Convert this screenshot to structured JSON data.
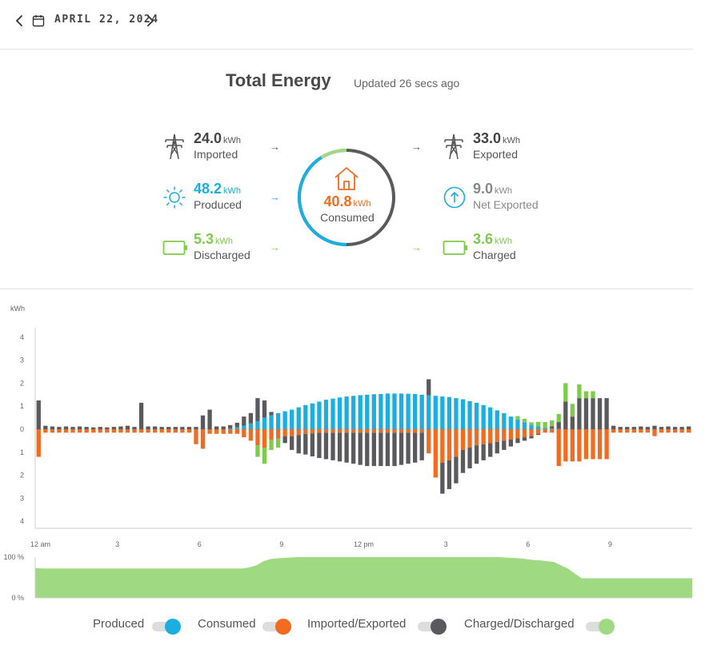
{
  "date_nav": {
    "date": "APRIL 22, 2024"
  },
  "header": {
    "title": "Total Energy",
    "updated": "Updated 26 secs ago"
  },
  "colors": {
    "produced": "#1AAFE0",
    "consumed": "#F26B21",
    "grid": "#5A5A5E",
    "battery": "#7DCB4A",
    "soc_fill": "#9FDA82"
  },
  "stats": {
    "imported": {
      "value": "24.0",
      "unit": "kWh",
      "label": "Imported"
    },
    "produced": {
      "value": "48.2",
      "unit": "kWh",
      "label": "Produced"
    },
    "discharged": {
      "value": "5.3",
      "unit": "kWh",
      "label": "Discharged"
    },
    "consumed": {
      "value": "40.8",
      "unit": "kWh",
      "label": "Consumed"
    },
    "exported": {
      "value": "33.0",
      "unit": "kWh",
      "label": "Exported"
    },
    "net_exported": {
      "value": "9.0",
      "unit": "kWh",
      "label": "Net Exported"
    },
    "charged": {
      "value": "3.6",
      "unit": "kWh",
      "label": "Charged"
    }
  },
  "legend": [
    {
      "label": "Produced",
      "color": "#1AAFE0",
      "enabled": true
    },
    {
      "label": "Consumed",
      "color": "#F26B21",
      "enabled": true
    },
    {
      "label": "Imported/Exported",
      "color": "#5A5A5E",
      "enabled": true
    },
    {
      "label": "Charged/Discharged",
      "color": "#7DCB4A",
      "enabled": true
    }
  ],
  "chart_data": [
    {
      "type": "bar",
      "ylabel": "kWh",
      "ylim": [
        -4,
        4
      ],
      "y_ticks": [
        "4",
        "3",
        "2",
        "1",
        "0",
        "1",
        "2",
        "3",
        "4"
      ],
      "x_ticks": [
        "12 am",
        "3",
        "6",
        "9",
        "12 pm",
        "3",
        "6",
        "9"
      ],
      "interval_hours": 0.25,
      "series": [
        {
          "name": "Produced",
          "values": [
            0,
            0,
            0,
            0,
            0,
            0,
            0,
            0,
            0,
            0,
            0,
            0,
            0,
            0,
            0,
            0,
            0,
            0,
            0,
            0,
            0,
            0,
            0,
            0,
            0,
            0,
            0,
            0,
            0.03,
            0.08,
            0.15,
            0.25,
            0.35,
            0.5,
            0.6,
            0.7,
            0.78,
            0.85,
            0.95,
            1.05,
            1.12,
            1.2,
            1.28,
            1.33,
            1.38,
            1.42,
            1.45,
            1.48,
            1.5,
            1.52,
            1.53,
            1.55,
            1.55,
            1.55,
            1.54,
            1.53,
            1.5,
            1.47,
            1.45,
            1.42,
            1.4,
            1.35,
            1.3,
            1.22,
            1.15,
            1.05,
            0.95,
            0.82,
            0.7,
            0.55,
            0.42,
            0.3,
            0.2,
            0.12,
            0.06,
            0.03,
            0.01,
            0,
            0,
            0,
            0,
            0,
            0,
            0,
            0,
            0,
            0,
            0,
            0,
            0,
            0,
            0,
            0,
            0,
            0,
            0
          ]
        },
        {
          "name": "Consumed",
          "values": [
            -1.2,
            -0.15,
            -0.15,
            -0.15,
            -0.15,
            -0.15,
            -0.15,
            -0.15,
            -0.15,
            -0.15,
            -0.15,
            -0.15,
            -0.15,
            -0.15,
            -0.15,
            -0.15,
            -0.15,
            -0.15,
            -0.15,
            -0.15,
            -0.15,
            -0.15,
            -0.15,
            -0.65,
            -0.85,
            -0.2,
            -0.2,
            -0.2,
            -0.2,
            -0.2,
            -0.35,
            -0.5,
            -0.7,
            -0.8,
            -0.45,
            -0.4,
            -0.3,
            -0.3,
            -0.25,
            -0.2,
            -0.18,
            -0.15,
            -0.15,
            -0.15,
            -0.15,
            -0.15,
            -0.15,
            -0.15,
            -0.15,
            -0.15,
            -0.15,
            -0.15,
            -0.15,
            -0.15,
            -0.15,
            -0.15,
            -0.15,
            -1.05,
            -2.1,
            -1.45,
            -1.35,
            -1.2,
            -0.9,
            -0.8,
            -0.7,
            -0.65,
            -0.6,
            -0.55,
            -0.5,
            -0.45,
            -0.4,
            -0.35,
            -0.3,
            -0.2,
            -0.15,
            -0.15,
            -1.6,
            -1.4,
            -1.4,
            -1.4,
            -1.3,
            -1.3,
            -1.3,
            -1.3,
            -0.15,
            -0.15,
            -0.15,
            -0.15,
            -0.15,
            -0.15,
            -0.3,
            -0.15,
            -0.15,
            -0.15,
            -0.15,
            -0.15
          ]
        },
        {
          "name": "Imported/Exported",
          "values": [
            1.25,
            0.15,
            0.12,
            0.1,
            0.12,
            0.1,
            0.12,
            0.1,
            0.08,
            0.1,
            0.08,
            0.1,
            0.12,
            0.15,
            0.1,
            1.15,
            0.12,
            0.12,
            0.1,
            0.1,
            0.1,
            0.1,
            0.1,
            0.1,
            0.6,
            0.85,
            0.12,
            0.12,
            0.15,
            0.2,
            0.4,
            0.45,
            1.0,
            0.75,
            0.15,
            0,
            -0.3,
            -0.6,
            -0.8,
            -0.9,
            -1.0,
            -1.1,
            -1.15,
            -1.2,
            -1.25,
            -1.3,
            -1.35,
            -1.4,
            -1.45,
            -1.45,
            -1.45,
            -1.45,
            -1.45,
            -1.4,
            -1.35,
            -1.3,
            -1.2,
            0.7,
            0,
            -1.35,
            -1.25,
            -1.15,
            -1.0,
            -0.9,
            -0.8,
            -0.7,
            -0.6,
            -0.5,
            -0.4,
            -0.3,
            -0.2,
            -0.15,
            -0.1,
            -0.05,
            0,
            0.1,
            0.3,
            1.2,
            0.55,
            1.35,
            1.35,
            1.35,
            1.35,
            1.35,
            0.15,
            0.1,
            0.1,
            0.1,
            0.12,
            0.1,
            0.15,
            0.1,
            0.12,
            0.1,
            0.1,
            0.12
          ]
        },
        {
          "name": "Charged/Discharged",
          "values": [
            0,
            0,
            0,
            0,
            0,
            0,
            0,
            0,
            0,
            0,
            0,
            0,
            0,
            0,
            0,
            0,
            0,
            0,
            0,
            0,
            0,
            0,
            0,
            0,
            0,
            0,
            0,
            0,
            0,
            0,
            0,
            0,
            -0.5,
            -0.7,
            -0.45,
            -0.4,
            0,
            0,
            0,
            0,
            0,
            0,
            0,
            0,
            0,
            0,
            0,
            0,
            0,
            0,
            0,
            0,
            0,
            0,
            0,
            0,
            0,
            0,
            0,
            0,
            0,
            0,
            0,
            0,
            0,
            0,
            0,
            0,
            0,
            0,
            0.15,
            0.15,
            0.1,
            0.2,
            0.25,
            0.25,
            0.35,
            0.8,
            0.55,
            0.6,
            0.3,
            0.3,
            0,
            0,
            0,
            0,
            0,
            0,
            0,
            0,
            0,
            0,
            0,
            0,
            0,
            0
          ]
        }
      ]
    },
    {
      "type": "area",
      "name": "Battery state of charge",
      "y_ticks": [
        "100 %",
        "0 %"
      ],
      "ylim": [
        0,
        100
      ],
      "values": [
        73,
        72,
        72,
        72,
        72,
        72,
        72,
        72,
        72,
        72,
        72,
        72,
        72,
        72,
        72,
        72,
        72,
        72,
        72,
        72,
        72,
        72,
        72,
        72,
        72,
        72,
        72,
        72,
        72,
        72,
        72,
        75,
        80,
        90,
        95,
        97,
        98,
        99,
        100,
        100,
        100,
        100,
        100,
        100,
        100,
        100,
        100,
        100,
        100,
        100,
        100,
        100,
        100,
        100,
        100,
        100,
        100,
        100,
        100,
        100,
        100,
        100,
        100,
        100,
        100,
        100,
        100,
        100,
        99,
        98,
        97,
        95,
        93,
        92,
        90,
        88,
        80,
        72,
        60,
        48,
        48,
        48,
        48,
        48,
        48,
        48,
        48,
        48,
        48,
        48,
        48,
        48,
        48,
        48,
        48,
        48
      ]
    }
  ]
}
